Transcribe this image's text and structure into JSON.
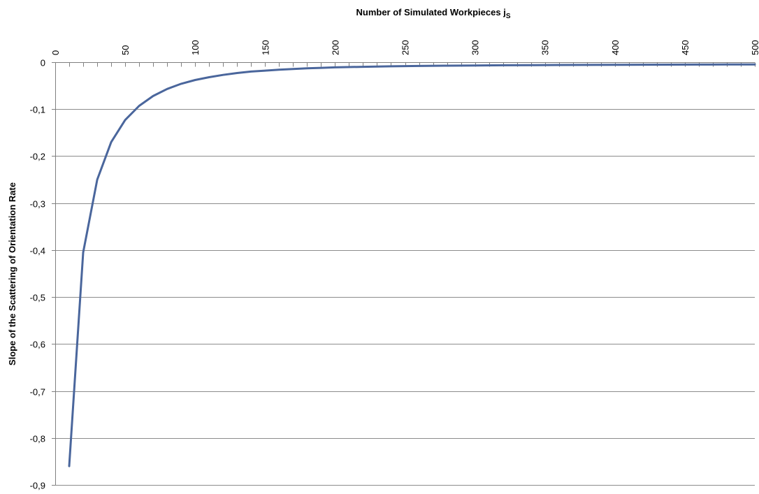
{
  "chart_data": {
    "type": "line",
    "title": "Number of Simulated Workpieces j",
    "title_subscript": "S",
    "xlabel": "Number of Simulated Workpieces j",
    "ylabel": "Slope of the Scattering of  Orientation Rate",
    "x_axis_position": "top",
    "xlim": [
      0,
      500
    ],
    "ylim": [
      -0.9,
      0
    ],
    "x_ticks": [
      "0",
      "50",
      "100",
      "150",
      "200",
      "250",
      "300",
      "350",
      "400",
      "450",
      "500"
    ],
    "x_tick_values": [
      0,
      50,
      100,
      150,
      200,
      250,
      300,
      350,
      400,
      450,
      500
    ],
    "y_ticks": [
      "0",
      "-0,1",
      "-0,2",
      "-0,3",
      "-0,4",
      "-0,5",
      "-0,6",
      "-0,7",
      "-0,8",
      "-0,9"
    ],
    "y_tick_values": [
      0,
      -0.1,
      -0.2,
      -0.3,
      -0.4,
      -0.5,
      -0.6,
      -0.7,
      -0.8,
      -0.9
    ],
    "grid": "horizontal",
    "series": [
      {
        "color": "#4a669c",
        "x": [
          10,
          20,
          30,
          40,
          50,
          60,
          70,
          80,
          90,
          100,
          110,
          120,
          130,
          140,
          150,
          160,
          170,
          180,
          190,
          200,
          220,
          240,
          260,
          280,
          300,
          320,
          340,
          360,
          380,
          400,
          420,
          440,
          460,
          480,
          500
        ],
        "values": [
          -0.86,
          -0.405,
          -0.25,
          -0.17,
          -0.123,
          -0.093,
          -0.072,
          -0.057,
          -0.046,
          -0.038,
          -0.032,
          -0.027,
          -0.023,
          -0.02,
          -0.018,
          -0.016,
          -0.0145,
          -0.013,
          -0.012,
          -0.011,
          -0.0098,
          -0.0088,
          -0.008,
          -0.0074,
          -0.007,
          -0.0066,
          -0.0063,
          -0.006,
          -0.0058,
          -0.0056,
          -0.0054,
          -0.0052,
          -0.005,
          -0.0049,
          -0.0048
        ]
      }
    ]
  }
}
